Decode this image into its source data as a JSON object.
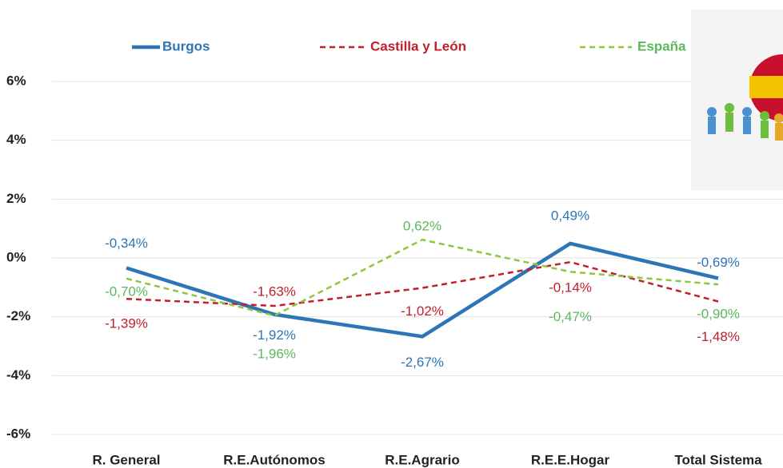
{
  "chart_data": {
    "type": "line",
    "categories": [
      "R. General",
      "R.E.Autónomos",
      "R.E.Agrario",
      "R.E.E.Hogar",
      "Total Sistema"
    ],
    "series": [
      {
        "name": "Burgos",
        "color": "#2e75b6",
        "dash": "solid",
        "values": [
          -0.34,
          -1.92,
          -2.67,
          0.49,
          -0.69
        ],
        "value_labels": [
          "-0,34%",
          "-1,92%",
          "-2,67%",
          "0,49%",
          "-0,69%"
        ]
      },
      {
        "name": "Castilla y León",
        "color": "#c0202a",
        "dash": "dashed",
        "values": [
          -1.39,
          -1.63,
          -1.02,
          -0.14,
          -1.48
        ],
        "value_labels": [
          "-1,39%",
          "-1,63%",
          "-1,02%",
          "-0,14%",
          "-1,48%"
        ]
      },
      {
        "name": "España",
        "color": "#8dc63f",
        "dash": "dashed",
        "values": [
          -0.7,
          -1.96,
          0.62,
          -0.47,
          -0.9
        ],
        "value_labels": [
          "-0,70%",
          "-1,96%",
          "0,62%",
          "-0,47%",
          "-0,90%"
        ]
      }
    ],
    "ylim": [
      -6,
      6
    ],
    "yticks": [
      {
        "value": -6,
        "label": "-6%"
      },
      {
        "value": -4,
        "label": "-4%"
      },
      {
        "value": -2,
        "label": "-2%"
      },
      {
        "value": 0,
        "label": "0%"
      },
      {
        "value": 2,
        "label": "2%"
      },
      {
        "value": 4,
        "label": "4%"
      },
      {
        "value": 6,
        "label": "6%"
      }
    ],
    "grid": true
  }
}
